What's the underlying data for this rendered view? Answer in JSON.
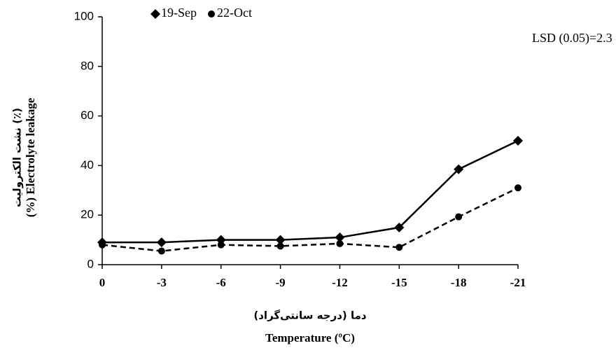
{
  "chart_data": {
    "type": "line",
    "y_label": "(%) Electrolyte leakage",
    "y_label_fa": "نشت الکترولیت (٪)",
    "x_label_fa": "دما (درجه سانتی‌گراد)",
    "x_label": "Temperature (ºC)",
    "annotation": "LSD (0.05)=2.3",
    "categories": [
      "0",
      "-3",
      "-6",
      "-9",
      "-12",
      "-15",
      "-18",
      "-21"
    ],
    "series": [
      {
        "name": "19-Sep",
        "color": "#000000",
        "marker": "diamond",
        "line_style": "solid",
        "values": [
          9,
          9,
          10,
          10,
          11,
          15,
          38.5,
          50
        ]
      },
      {
        "name": "22-Oct",
        "color": "#000000",
        "marker": "circle",
        "line_style": "dashed",
        "values": [
          8,
          5.5,
          8,
          7.5,
          8.5,
          7,
          19.3,
          31
        ]
      }
    ],
    "ylim": [
      0,
      100
    ],
    "yticks": [
      0,
      20,
      40,
      60,
      80,
      100
    ],
    "grid": false
  }
}
